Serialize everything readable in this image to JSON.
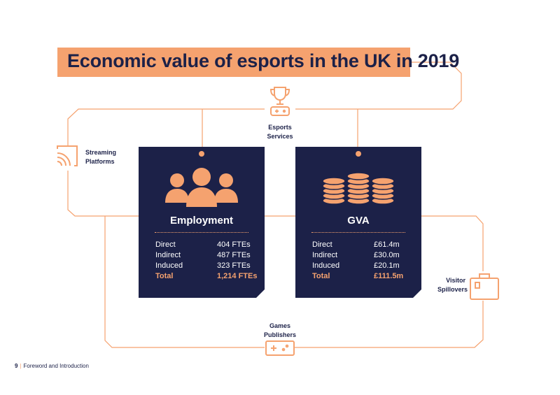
{
  "title": "Economic value of esports in the UK in 2019",
  "nodes": {
    "esports_services": [
      "Esports",
      "Services"
    ],
    "streaming_platforms": [
      "Streaming",
      "Platforms"
    ],
    "visitor_spillovers": [
      "Visitor",
      "Spillovers"
    ],
    "games_publishers": [
      "Games",
      "Publishers"
    ]
  },
  "employment": {
    "title": "Employment",
    "rows": [
      {
        "label": "Direct",
        "value": "404 FTEs"
      },
      {
        "label": "Indirect",
        "value": "487 FTEs"
      },
      {
        "label": "Induced",
        "value": "323 FTEs"
      },
      {
        "label": "Total",
        "value": "1,214 FTEs"
      }
    ]
  },
  "gva": {
    "title": "GVA",
    "rows": [
      {
        "label": "Direct",
        "value": "£61.4m"
      },
      {
        "label": "Indirect",
        "value": "£30.0m"
      },
      {
        "label": "Induced",
        "value": "£20.1m"
      },
      {
        "label": "Total",
        "value": "£111.5m"
      }
    ]
  },
  "footer": {
    "page": "9",
    "section": "Foreword and Introduction"
  },
  "colors": {
    "navy": "#1c2148",
    "orange": "#f5a26f"
  },
  "icons": [
    "trophy-gamepad-icon",
    "wifi-signal-icon",
    "suitcase-icon",
    "gamepad-icon",
    "people-icon",
    "coins-stack-icon"
  ]
}
